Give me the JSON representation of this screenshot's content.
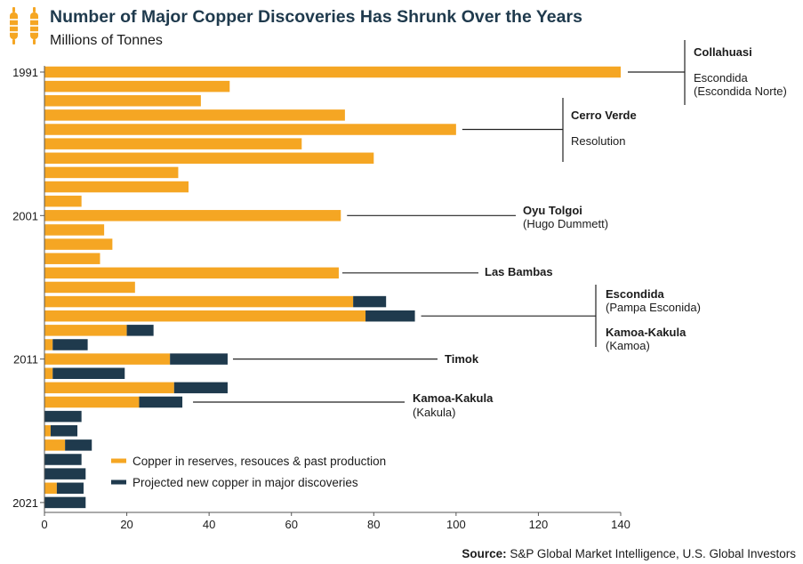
{
  "header": {
    "title": "Number of Major Copper Discoveries Has Shrunk Over the Years",
    "subtitle": "Millions of Tonnes"
  },
  "source": {
    "label": "Source:",
    "text": " S&P Global Market Intelligence, U.S. Global Investors"
  },
  "colors": {
    "reserves": "#f5a623",
    "projected": "#1f3a4d",
    "title": "#1f3a4d",
    "axis": "#555555"
  },
  "logo_icon": "gold-nugget-icon",
  "chart_data": {
    "type": "bar",
    "orientation": "horizontal",
    "stacked": true,
    "title": "Number of Major Copper Discoveries Has Shrunk Over the Years",
    "subtitle": "Millions of Tonnes",
    "categories": [
      1991,
      1992,
      1993,
      1994,
      1995,
      1996,
      1997,
      1998,
      1999,
      2000,
      2001,
      2002,
      2003,
      2004,
      2005,
      2006,
      2007,
      2008,
      2009,
      2010,
      2011,
      2012,
      2013,
      2014,
      2015,
      2016,
      2017,
      2018,
      2019,
      2020,
      2021
    ],
    "y_tick_labels": [
      "1991",
      "2001",
      "2011",
      "2021"
    ],
    "series": [
      {
        "name": "Copper in reserves, resouces & past production",
        "values": [
          140,
          45,
          38,
          73,
          100,
          62.5,
          80,
          32.5,
          35,
          9,
          72,
          14.5,
          16.5,
          13.5,
          71.5,
          22,
          75,
          78,
          20,
          2,
          30.5,
          2,
          31.5,
          23,
          0,
          1.5,
          5,
          0,
          0,
          3,
          0
        ]
      },
      {
        "name": "Projected new copper in major discoveries",
        "values": [
          0,
          0,
          0,
          0,
          0,
          0,
          0,
          0,
          0,
          0,
          0,
          0,
          0,
          0,
          0,
          0,
          8,
          12,
          6.5,
          8.5,
          14,
          17.5,
          13,
          10.5,
          9,
          6.5,
          6.5,
          9,
          10,
          6.5,
          10
        ]
      }
    ],
    "x_ticks": [
      0,
      20,
      40,
      60,
      80,
      100,
      120,
      140
    ],
    "xlim": [
      0,
      140
    ],
    "grid": false,
    "legend": {
      "position": "bottom-right"
    },
    "annotations": [
      {
        "year": 1991,
        "group": "bracket",
        "lines": [
          {
            "text": "Collahuasi",
            "bold": true
          },
          {
            "text": "Escondida",
            "bold": false
          },
          {
            "text": "(Escondida Norte)",
            "bold": false
          }
        ]
      },
      {
        "year": 1995,
        "group": "bracket",
        "lines": [
          {
            "text": "Cerro Verde",
            "bold": true
          },
          {
            "text": "Resolution",
            "bold": false
          }
        ]
      },
      {
        "year": 2001,
        "group": "single",
        "lines": [
          {
            "text": "Oyu Tolgoi",
            "bold": true
          },
          {
            "text": "(Hugo Dummett)",
            "bold": false
          }
        ]
      },
      {
        "year": 2005,
        "group": "single",
        "lines": [
          {
            "text": "Las Bambas",
            "bold": true
          }
        ]
      },
      {
        "year": 2008,
        "group": "bracket",
        "lines": [
          {
            "text": "Escondida",
            "bold": true
          },
          {
            "text": "(Pampa Esconida)",
            "bold": false
          },
          {
            "text": "Kamoa-Kakula",
            "bold": true
          },
          {
            "text": "(Kamoa)",
            "bold": false
          }
        ]
      },
      {
        "year": 2011,
        "group": "single",
        "lines": [
          {
            "text": "Timok",
            "bold": true
          }
        ]
      },
      {
        "year": 2014,
        "group": "single",
        "lines": [
          {
            "text": "Kamoa-Kakula",
            "bold": true
          },
          {
            "text": "(Kakula)",
            "bold": false
          }
        ]
      }
    ]
  }
}
